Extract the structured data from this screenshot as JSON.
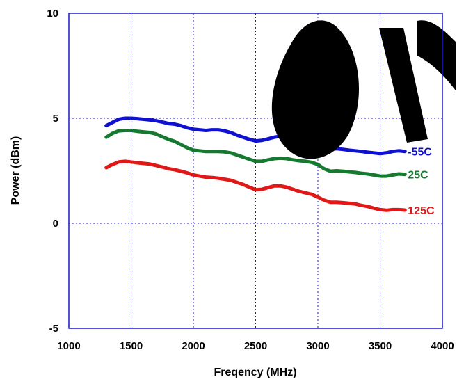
{
  "chart_data": {
    "type": "line",
    "xlabel": "Freqency (MHz)",
    "ylabel": "Power (dBm)",
    "xlim": [
      1000,
      4000
    ],
    "ylim": [
      -5,
      10
    ],
    "xticks": [
      1000,
      1500,
      2000,
      2500,
      3000,
      3500,
      4000
    ],
    "yticks": [
      -5,
      0,
      5,
      10
    ],
    "grid": true,
    "legend": "inline labels at right end of each line",
    "x": [
      1300,
      1350,
      1400,
      1450,
      1500,
      1550,
      1600,
      1650,
      1700,
      1750,
      1800,
      1850,
      1900,
      1950,
      2000,
      2050,
      2100,
      2150,
      2200,
      2250,
      2300,
      2350,
      2400,
      2450,
      2500,
      2550,
      2600,
      2650,
      2700,
      2750,
      2800,
      2850,
      2900,
      2950,
      3000,
      3050,
      3100,
      3150,
      3200,
      3250,
      3300,
      3350,
      3400,
      3450,
      3500,
      3550,
      3600,
      3650,
      3700
    ],
    "series": [
      {
        "name": "-55C",
        "color": "#1010d0",
        "values": [
          4.65,
          4.8,
          4.95,
          5.0,
          5.0,
          4.98,
          4.95,
          4.92,
          4.88,
          4.82,
          4.75,
          4.72,
          4.65,
          4.55,
          4.48,
          4.45,
          4.42,
          4.45,
          4.45,
          4.4,
          4.32,
          4.2,
          4.1,
          4.0,
          3.92,
          3.95,
          4.02,
          4.1,
          4.15,
          4.12,
          4.05,
          3.98,
          3.92,
          3.85,
          3.75,
          3.6,
          3.52,
          3.55,
          3.52,
          3.48,
          3.45,
          3.42,
          3.38,
          3.35,
          3.32,
          3.35,
          3.42,
          3.45,
          3.42
        ]
      },
      {
        "name": "25C",
        "color": "#157a30",
        "values": [
          4.1,
          4.28,
          4.4,
          4.42,
          4.42,
          4.38,
          4.35,
          4.32,
          4.25,
          4.12,
          4.0,
          3.9,
          3.75,
          3.6,
          3.48,
          3.45,
          3.42,
          3.42,
          3.42,
          3.4,
          3.35,
          3.25,
          3.15,
          3.05,
          2.95,
          2.95,
          3.02,
          3.08,
          3.1,
          3.08,
          3.02,
          2.98,
          2.95,
          2.9,
          2.8,
          2.6,
          2.48,
          2.5,
          2.48,
          2.45,
          2.42,
          2.38,
          2.35,
          2.3,
          2.25,
          2.25,
          2.3,
          2.35,
          2.33
        ]
      },
      {
        "name": "125C",
        "color": "#e01818",
        "values": [
          2.65,
          2.8,
          2.92,
          2.95,
          2.92,
          2.88,
          2.85,
          2.82,
          2.75,
          2.68,
          2.6,
          2.55,
          2.48,
          2.4,
          2.3,
          2.25,
          2.2,
          2.18,
          2.15,
          2.1,
          2.05,
          1.95,
          1.85,
          1.72,
          1.6,
          1.62,
          1.7,
          1.78,
          1.78,
          1.72,
          1.62,
          1.52,
          1.45,
          1.38,
          1.25,
          1.1,
          1.0,
          1.0,
          0.98,
          0.95,
          0.92,
          0.85,
          0.8,
          0.72,
          0.65,
          0.62,
          0.65,
          0.65,
          0.63
        ]
      }
    ]
  }
}
